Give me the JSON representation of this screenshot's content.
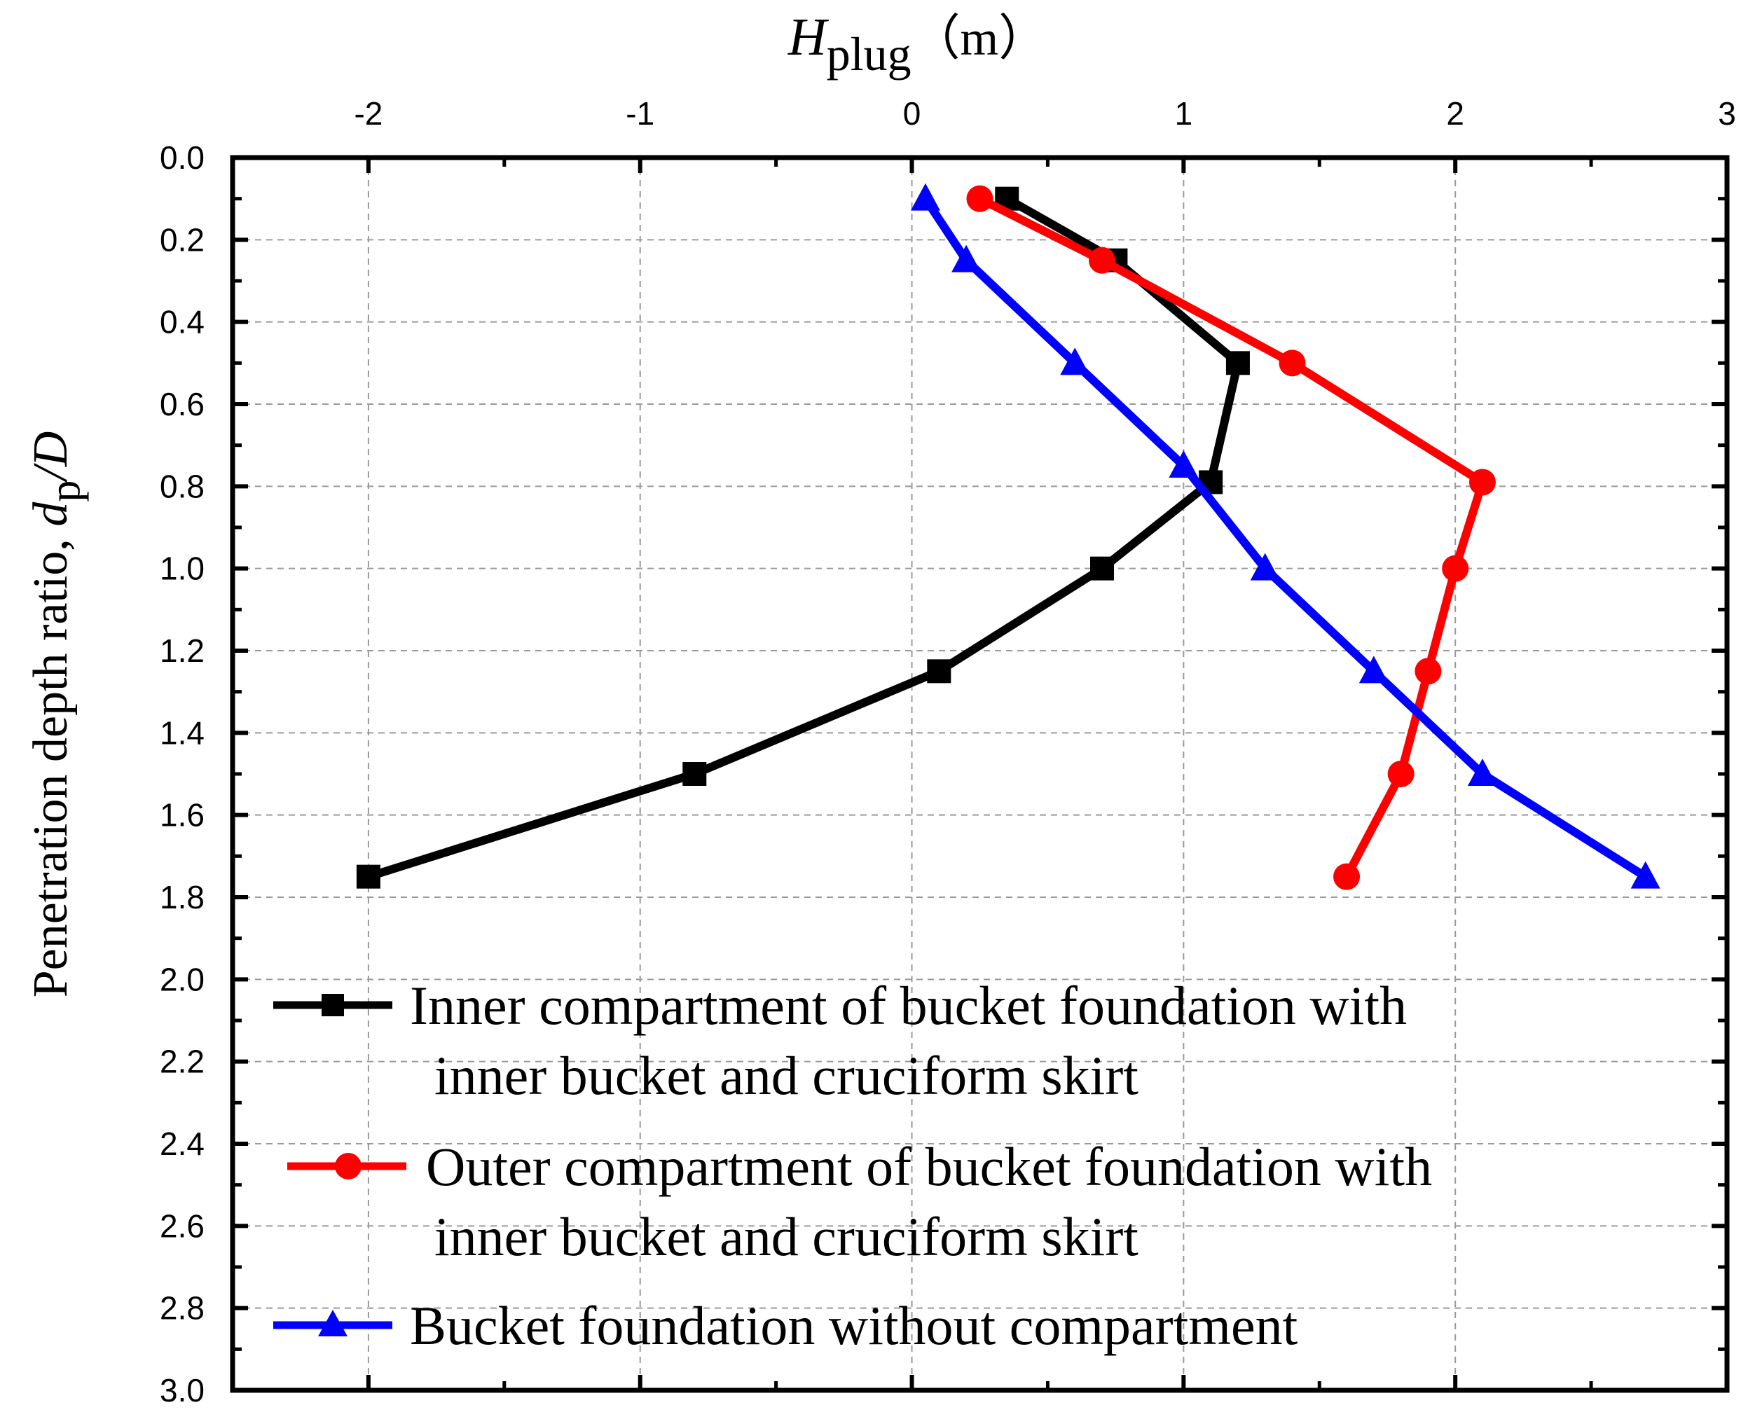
{
  "chart_data": {
    "type": "line",
    "title": "",
    "xlabel": {
      "symbol": "H",
      "subscript": "plug",
      "unit": "（m）"
    },
    "ylabel": {
      "text": "Penetration depth ratio, ",
      "var": "d",
      "subscript": "p",
      "tail": "/D"
    },
    "xlim": [
      -2.5,
      3
    ],
    "ylim": [
      0,
      3
    ],
    "y_inverted": true,
    "x_axis_position": "top",
    "grid": true,
    "x_ticks": [
      -2,
      -1,
      0,
      1,
      2,
      3
    ],
    "x_tick_labels": [
      "-2",
      "-1",
      "0",
      "1",
      "2",
      "3"
    ],
    "y_ticks": [
      0,
      0.2,
      0.4,
      0.6,
      0.8,
      1.0,
      1.2,
      1.4,
      1.6,
      1.8,
      2.0,
      2.2,
      2.4,
      2.6,
      2.8,
      3.0
    ],
    "y_tick_labels": [
      "0.0",
      "0.2",
      "0.4",
      "0.6",
      "0.8",
      "1.0",
      "1.2",
      "1.4",
      "1.6",
      "1.8",
      "2.0",
      "2.2",
      "2.4",
      "2.6",
      "2.8",
      "3.0"
    ],
    "legend_position": "bottom-left",
    "series": [
      {
        "name": "Inner compartment of bucket foundation with inner bucket and cruciform skirt",
        "legend_lines": [
          "Inner compartment of bucket foundation with",
          "inner bucket and cruciform skirt"
        ],
        "color": "#000000",
        "marker": "square",
        "points": [
          [
            0.35,
            0.1
          ],
          [
            0.75,
            0.25
          ],
          [
            1.2,
            0.5
          ],
          [
            1.1,
            0.79
          ],
          [
            0.7,
            1.0
          ],
          [
            0.1,
            1.25
          ],
          [
            -0.8,
            1.5
          ],
          [
            -2.0,
            1.75
          ]
        ]
      },
      {
        "name": "Outer compartment of bucket foundation with inner bucket and cruciform skirt",
        "legend_lines": [
          "Outer compartment of bucket foundation with",
          "inner bucket and cruciform skirt"
        ],
        "color": "#ff0000",
        "marker": "circle",
        "points": [
          [
            0.25,
            0.1
          ],
          [
            0.7,
            0.25
          ],
          [
            1.4,
            0.5
          ],
          [
            2.1,
            0.79
          ],
          [
            2.0,
            1.0
          ],
          [
            1.9,
            1.25
          ],
          [
            1.8,
            1.5
          ],
          [
            1.6,
            1.75
          ]
        ]
      },
      {
        "name": "Bucket foundation without compartment",
        "legend_lines": [
          "Bucket foundation without compartment"
        ],
        "color": "#0000ff",
        "marker": "triangle",
        "points": [
          [
            0.05,
            0.1
          ],
          [
            0.2,
            0.25
          ],
          [
            0.6,
            0.5
          ],
          [
            1.0,
            0.75
          ],
          [
            1.3,
            1.0
          ],
          [
            1.7,
            1.25
          ],
          [
            2.1,
            1.5
          ],
          [
            2.7,
            1.75
          ]
        ]
      }
    ]
  }
}
